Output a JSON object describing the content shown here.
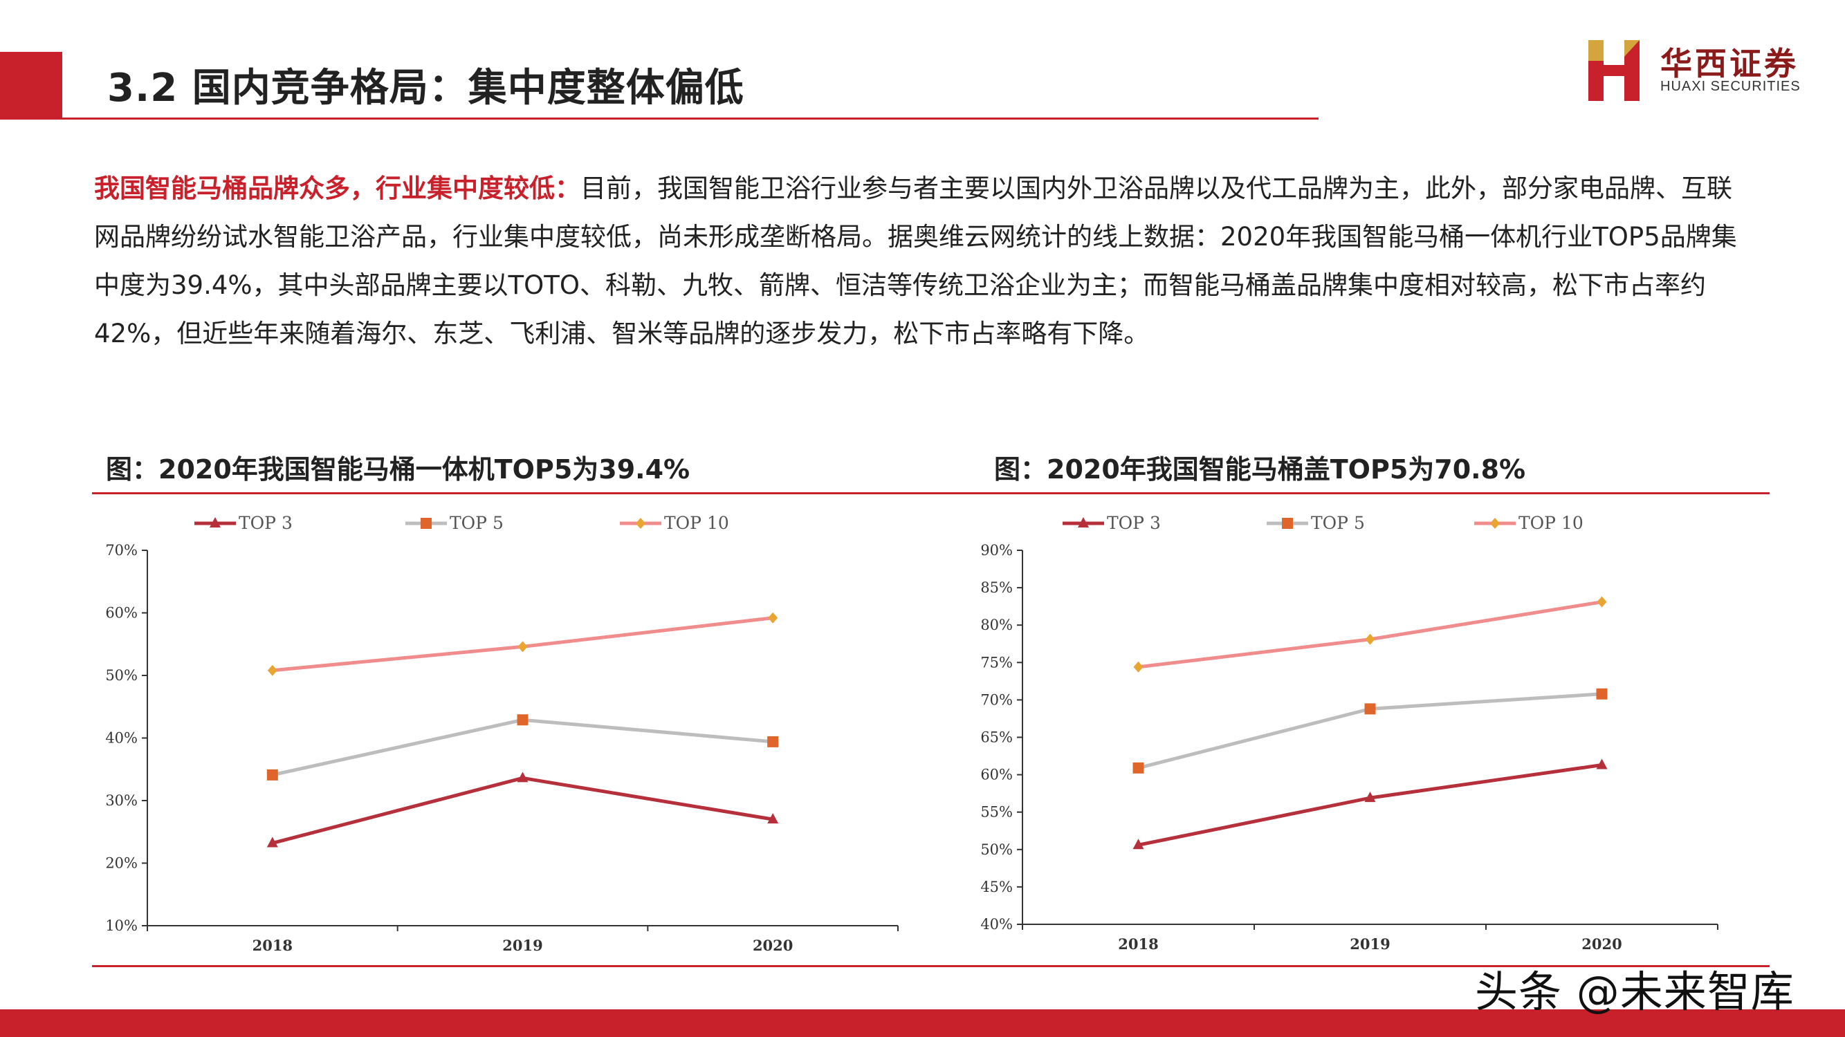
{
  "header": {
    "title": "3.2 国内竞争格局：集中度整体偏低",
    "logo_cn": "华西证券",
    "logo_en": "HUAXI SECURITIES",
    "accent_color": "#c8212b"
  },
  "body": {
    "lead": "我国智能马桶品牌众多，行业集中度较低：",
    "text": "目前，我国智能卫浴行业参与者主要以国内外卫浴品牌以及代工品牌为主，此外，部分家电品牌、互联网品牌纷纷试水智能卫浴产品，行业集中度较低，尚未形成垄断格局。据奥维云网统计的线上数据：2020年我国智能马桶一体机行业TOP5品牌集中度为39.4%，其中头部品牌主要以TOTO、科勒、九牧、箭牌、恒洁等传统卫浴企业为主；而智能马桶盖品牌集中度相对较高，松下市占率约42%，但近些年来随着海尔、东芝、飞利浦、智米等品牌的逐步发力，松下市占率略有下降。"
  },
  "watermark": "头条 @未来智库",
  "chart_data": [
    {
      "type": "line",
      "title": "图：2020年我国智能马桶一体机TOP5为39.4%",
      "categories": [
        "2018",
        "2019",
        "2020"
      ],
      "ylim": [
        0.1,
        0.7
      ],
      "yticks": [
        0.1,
        0.2,
        0.3,
        0.4,
        0.5,
        0.6,
        0.7
      ],
      "ytick_labels": [
        "10%",
        "20%",
        "30%",
        "40%",
        "50%",
        "60%",
        "70%"
      ],
      "legend_position": "top",
      "series": [
        {
          "name": "TOP 3",
          "values": [
            0.232,
            0.336,
            0.27
          ],
          "color": "#b5303a",
          "marker": "triangle"
        },
        {
          "name": "TOP 5",
          "values": [
            0.341,
            0.429,
            0.394
          ],
          "color": "#bdbdbd",
          "marker_color": "#e0652a",
          "marker": "square"
        },
        {
          "name": "TOP 10",
          "values": [
            0.508,
            0.546,
            0.592
          ],
          "color": "#f08c8c",
          "marker_color": "#e8a532",
          "marker": "diamond"
        }
      ]
    },
    {
      "type": "line",
      "title": "图：2020年我国智能马桶盖TOP5为70.8%",
      "categories": [
        "2018",
        "2019",
        "2020"
      ],
      "ylim": [
        0.4,
        0.9
      ],
      "yticks": [
        0.4,
        0.45,
        0.5,
        0.55,
        0.6,
        0.65,
        0.7,
        0.75,
        0.8,
        0.85,
        0.9
      ],
      "ytick_labels": [
        "40%",
        "45%",
        "50%",
        "55%",
        "60%",
        "65%",
        "70%",
        "75%",
        "80%",
        "85%",
        "90%"
      ],
      "legend_position": "top",
      "series": [
        {
          "name": "TOP 3",
          "values": [
            0.506,
            0.569,
            0.613
          ],
          "color": "#b5303a",
          "marker": "triangle"
        },
        {
          "name": "TOP 5",
          "values": [
            0.609,
            0.688,
            0.708
          ],
          "color": "#bdbdbd",
          "marker_color": "#e0652a",
          "marker": "square"
        },
        {
          "name": "TOP 10",
          "values": [
            0.744,
            0.781,
            0.831
          ],
          "color": "#f08c8c",
          "marker_color": "#e8a532",
          "marker": "diamond"
        }
      ]
    }
  ]
}
